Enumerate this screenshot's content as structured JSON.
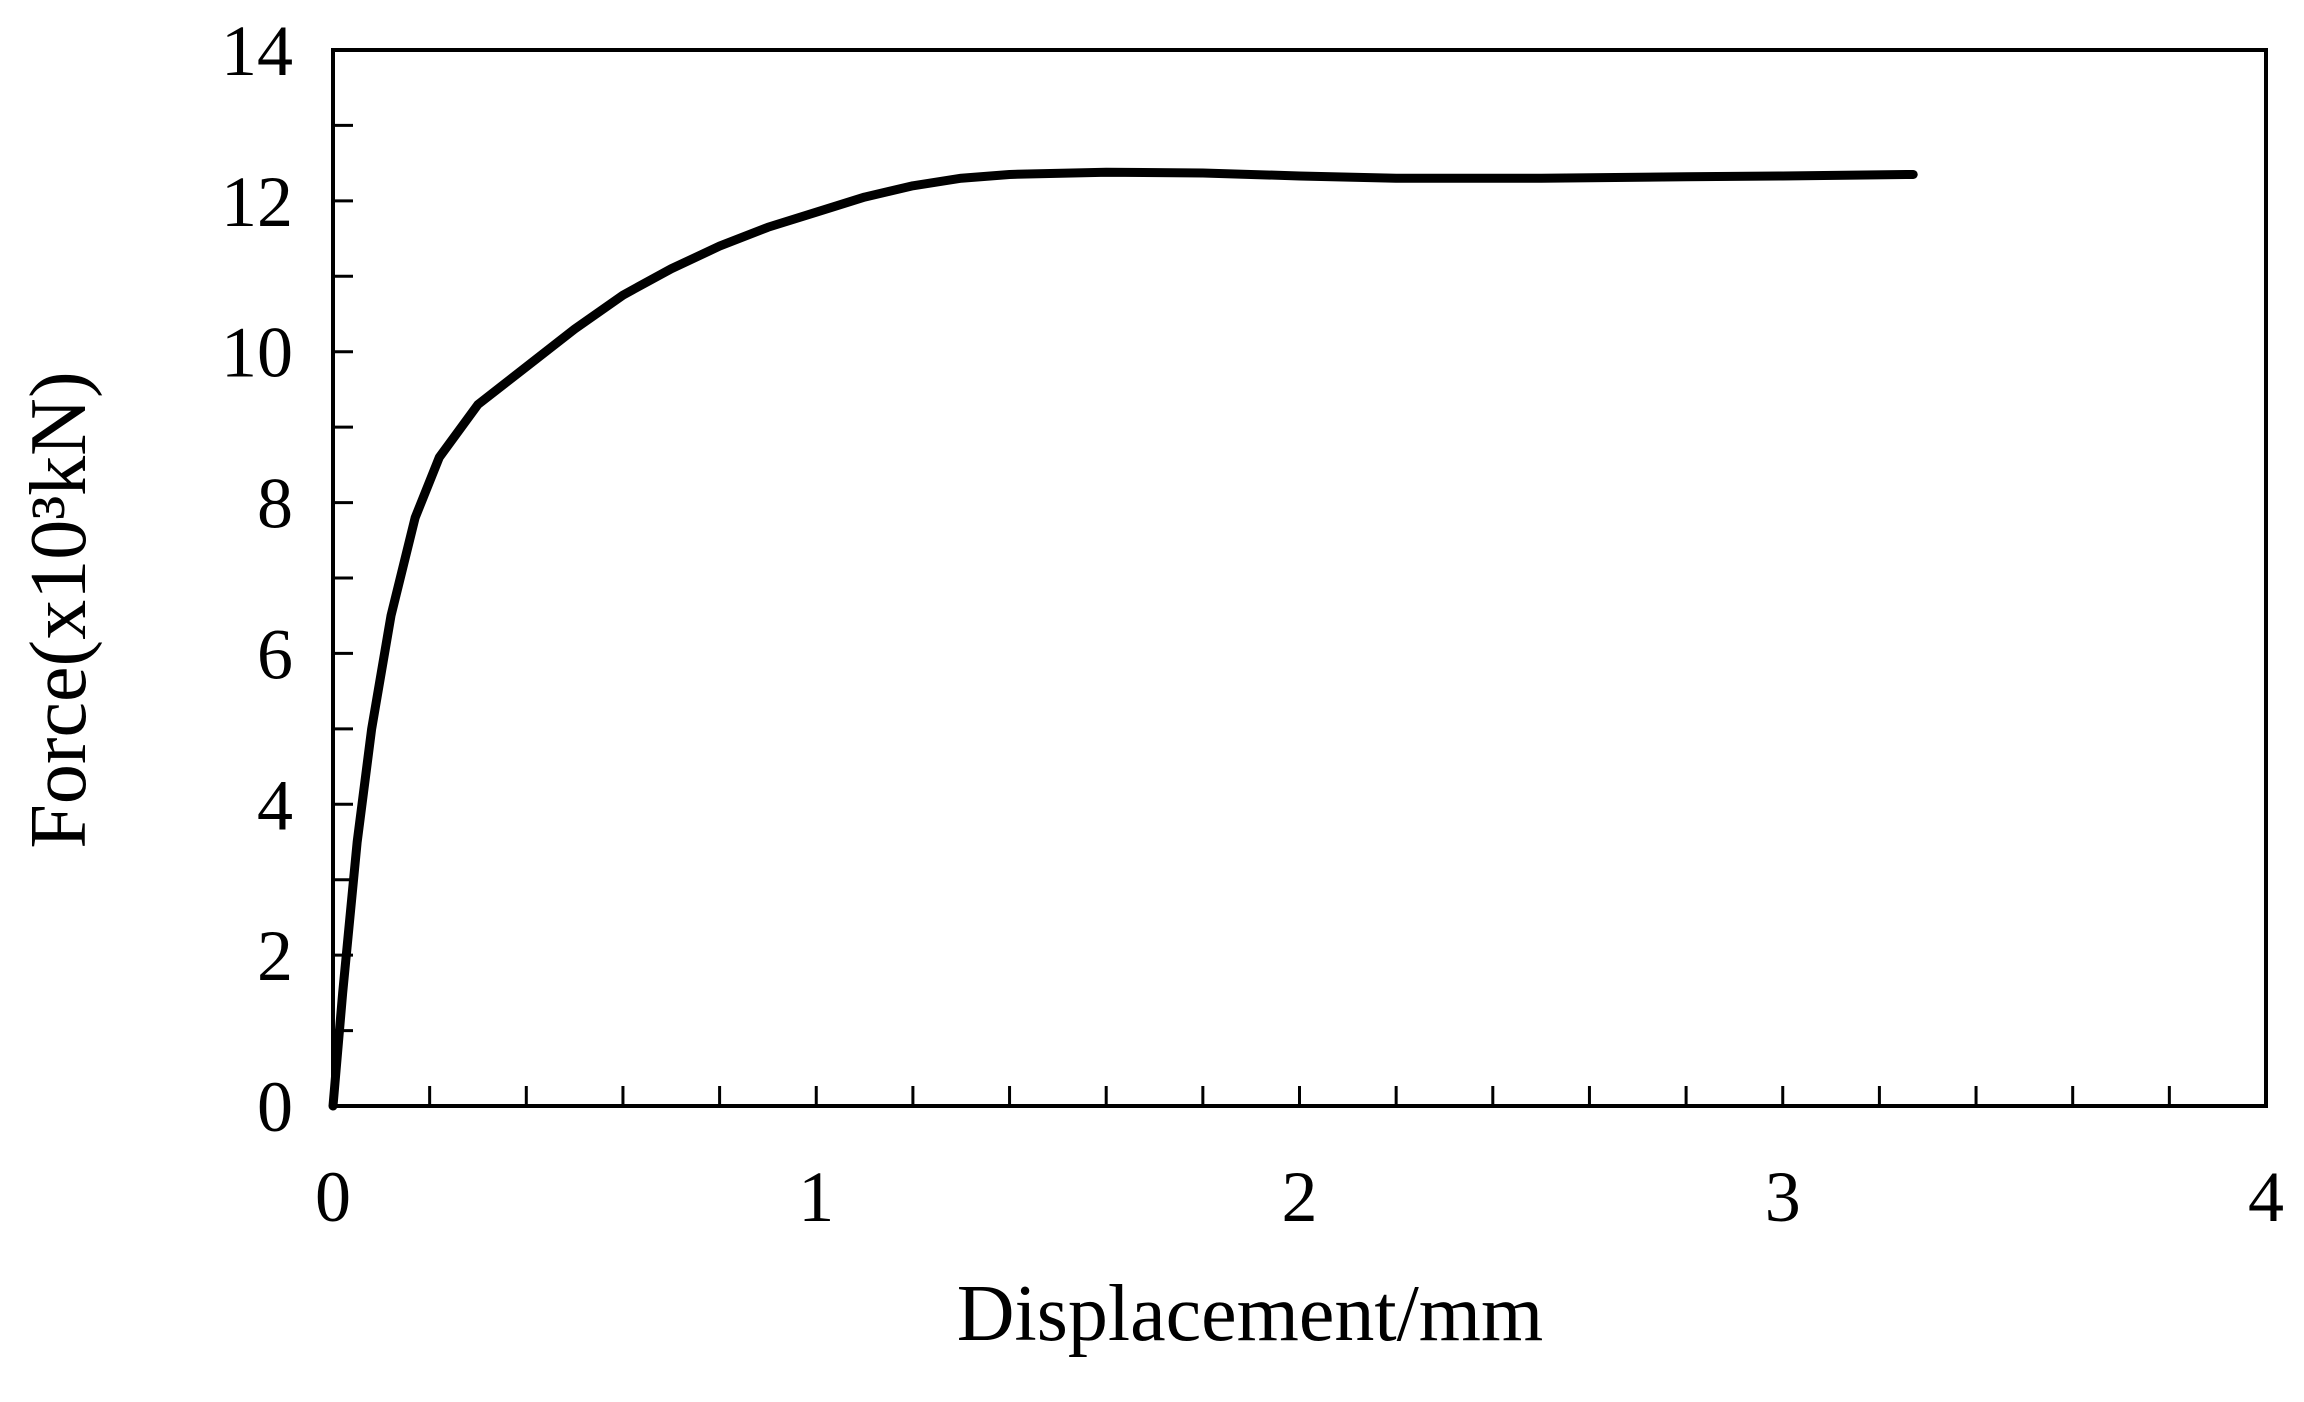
{
  "chart_data": {
    "type": "line",
    "x_label": "Displacement/mm",
    "y_label": "Force(x10³kN)",
    "xlim": [
      0,
      4
    ],
    "ylim": [
      0,
      14
    ],
    "xticks": [
      0,
      1,
      2,
      3,
      4
    ],
    "yticks": [
      0,
      2,
      4,
      6,
      8,
      10,
      12,
      14
    ],
    "xminorticks": [
      0.2,
      0.4,
      0.6,
      0.8,
      1.2,
      1.4,
      1.6,
      1.8,
      2.2,
      2.4,
      2.6,
      2.8,
      3.2,
      3.4,
      3.6,
      3.8
    ],
    "yminorticks": [
      1,
      3,
      5,
      7,
      9,
      11,
      13
    ],
    "grid": false,
    "color": "#000000",
    "x": [
      0,
      0.02,
      0.05,
      0.08,
      0.12,
      0.17,
      0.22,
      0.3,
      0.4,
      0.5,
      0.6,
      0.7,
      0.8,
      0.9,
      1.0,
      1.1,
      1.2,
      1.3,
      1.4,
      1.6,
      1.8,
      2.0,
      2.2,
      2.5,
      2.8,
      3.0,
      3.27
    ],
    "values": [
      0,
      1.5,
      3.5,
      5,
      6.5,
      7.8,
      8.6,
      9.3,
      9.8,
      10.3,
      10.75,
      11.1,
      11.4,
      11.65,
      11.85,
      12.05,
      12.2,
      12.3,
      12.35,
      12.38,
      12.37,
      12.33,
      12.3,
      12.3,
      12.32,
      12.33,
      12.35
    ]
  }
}
